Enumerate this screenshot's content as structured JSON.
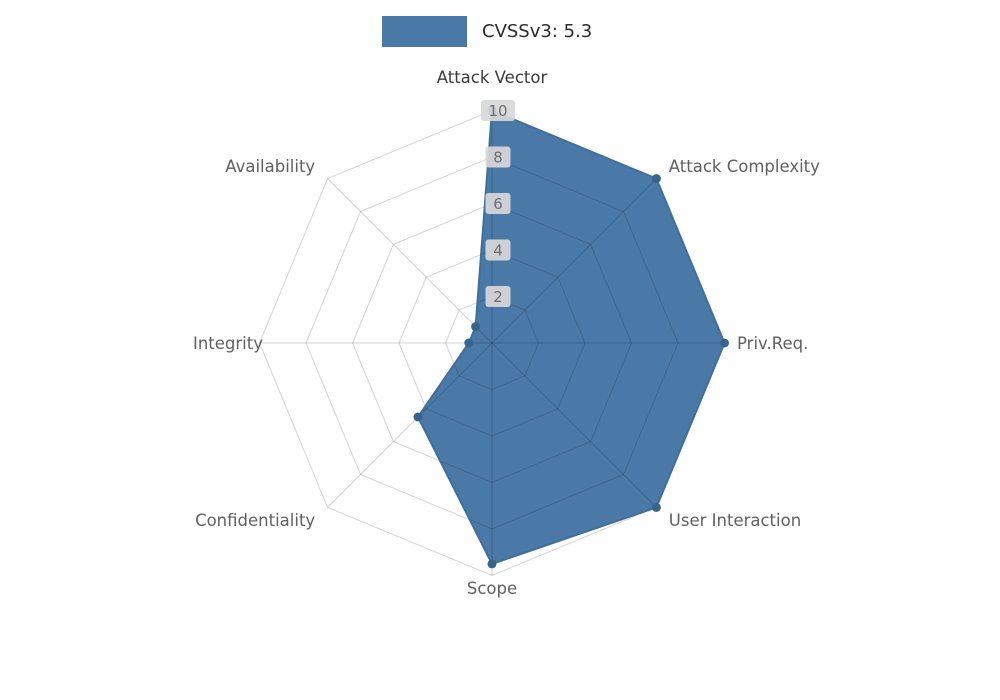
{
  "chart_data": {
    "type": "radar",
    "title": "CVSSv3: 5.3",
    "legend": {
      "label": "CVSSv3: 5.3",
      "position": "top-center",
      "swatch_color": "#4a79a8"
    },
    "categories": [
      "Attack Vector",
      "Attack Complexity",
      "Priv.Req.",
      "User Interaction",
      "Scope",
      "Confidentiality",
      "Integrity",
      "Availability"
    ],
    "series": [
      {
        "name": "CVSSv3: 5.3",
        "values": [
          10,
          10,
          10,
          10,
          9.5,
          4.5,
          1,
          1
        ]
      }
    ],
    "radial_ticks": [
      2,
      4,
      6,
      8,
      10
    ],
    "rlim": [
      0,
      10
    ],
    "grid": true,
    "colors": {
      "fill": "#4a79a8",
      "stroke": "#416f9c",
      "marker": "#38648c",
      "grid_line": "rgba(0,0,0,0.17)",
      "tick_box_bg": "#d8d8d8",
      "tick_text": "#6f6f6f",
      "axis_label": "#606060",
      "axis_label_primary": "#3a3a3a",
      "legend_text": "#2b2b2b",
      "background": "#ffffff"
    }
  }
}
